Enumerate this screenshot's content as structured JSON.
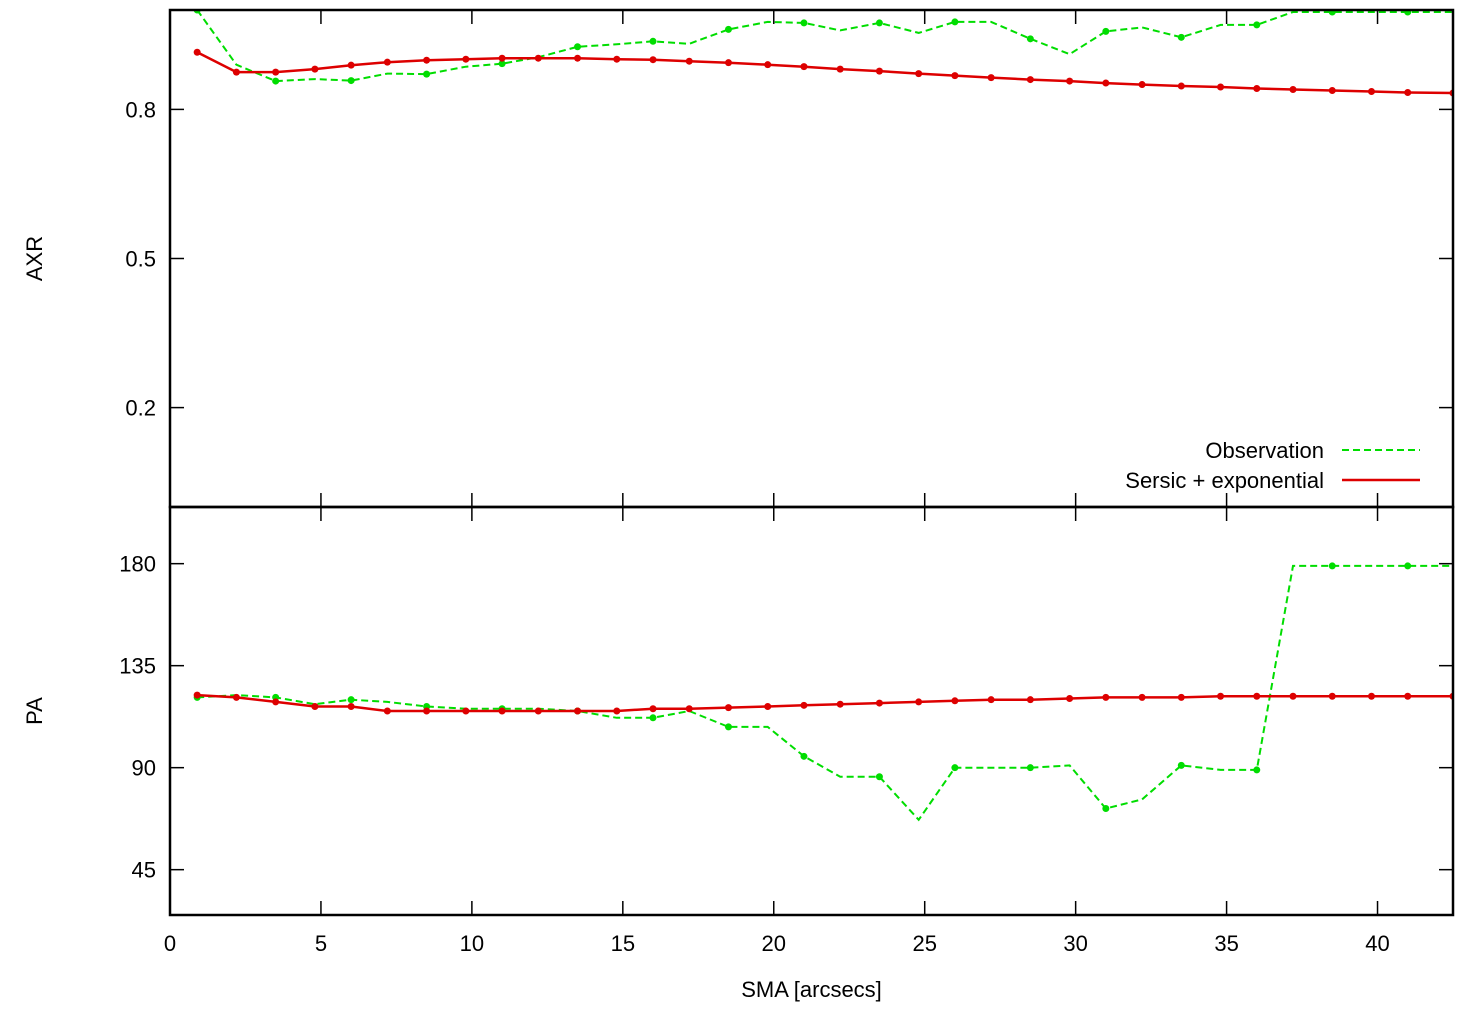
{
  "chart_data": [
    {
      "type": "line",
      "panel": "top",
      "title": "",
      "xlabel": "",
      "ylabel": "AXR",
      "xlim": [
        0,
        42.5
      ],
      "ylim": [
        0,
        1.0
      ],
      "yticks": [
        0.2,
        0.5,
        0.8
      ],
      "ytick_labels": [
        "0.2",
        "0.5",
        "0.8"
      ],
      "grid": false,
      "legend_position": "bottom-right",
      "series": [
        {
          "name": "Observation",
          "color": "#00dd00",
          "line_style": "dashed",
          "x": [
            0.9,
            2.2,
            3.5,
            4.8,
            6.0,
            7.2,
            8.5,
            9.8,
            11.0,
            12.2,
            13.5,
            14.8,
            16.0,
            17.2,
            18.5,
            19.8,
            21.0,
            22.2,
            23.5,
            24.8,
            26.0,
            27.2,
            28.5,
            29.8,
            31.0,
            32.2,
            33.5,
            34.8,
            36.0,
            37.2,
            38.5,
            39.8,
            41.0,
            42.5
          ],
          "y": [
            1.0,
            0.89,
            0.857,
            0.861,
            0.858,
            0.872,
            0.871,
            0.886,
            0.892,
            0.905,
            0.926,
            0.931,
            0.937,
            0.932,
            0.961,
            0.976,
            0.974,
            0.959,
            0.974,
            0.954,
            0.976,
            0.976,
            0.942,
            0.911,
            0.957,
            0.965,
            0.945,
            0.97,
            0.97,
            0.996,
            0.996,
            0.996,
            0.996,
            0.996
          ]
        },
        {
          "name": "Sersic + exponential",
          "color": "#dd0000",
          "line_style": "solid",
          "x": [
            0.9,
            2.2,
            3.5,
            4.8,
            6.0,
            7.2,
            8.5,
            9.8,
            11.0,
            12.2,
            13.5,
            14.8,
            16.0,
            17.2,
            18.5,
            19.8,
            21.0,
            22.2,
            23.5,
            24.8,
            26.0,
            27.2,
            28.5,
            29.8,
            31.0,
            32.2,
            33.5,
            34.8,
            36.0,
            37.2,
            38.5,
            39.8,
            41.0,
            42.5
          ],
          "y": [
            0.915,
            0.875,
            0.875,
            0.881,
            0.889,
            0.895,
            0.899,
            0.901,
            0.903,
            0.903,
            0.903,
            0.901,
            0.9,
            0.897,
            0.894,
            0.89,
            0.886,
            0.881,
            0.877,
            0.872,
            0.868,
            0.864,
            0.86,
            0.857,
            0.853,
            0.85,
            0.847,
            0.845,
            0.842,
            0.84,
            0.838,
            0.836,
            0.834,
            0.833
          ]
        }
      ]
    },
    {
      "type": "line",
      "panel": "bottom",
      "title": "",
      "xlabel": "SMA [arcsecs]",
      "ylabel": "PA",
      "xlim": [
        0,
        42.5
      ],
      "ylim": [
        25,
        205
      ],
      "xticks": [
        0,
        5,
        10,
        15,
        20,
        25,
        30,
        35,
        40
      ],
      "xtick_labels": [
        "0",
        "5",
        "10",
        "15",
        "20",
        "25",
        "30",
        "35",
        "40"
      ],
      "yticks": [
        45,
        90,
        135,
        180
      ],
      "ytick_labels": [
        "45",
        "90",
        "135",
        "180"
      ],
      "grid": false,
      "series": [
        {
          "name": "Observation",
          "color": "#00dd00",
          "line_style": "dashed",
          "x": [
            0.9,
            2.2,
            3.5,
            4.8,
            6.0,
            7.2,
            8.5,
            9.8,
            11.0,
            12.2,
            13.5,
            14.8,
            16.0,
            17.2,
            18.5,
            19.8,
            21.0,
            22.2,
            23.5,
            24.8,
            26.0,
            27.2,
            28.5,
            29.8,
            31.0,
            32.2,
            33.5,
            34.8,
            36.0,
            37.2,
            38.5,
            39.8,
            41.0,
            42.5
          ],
          "y": [
            121,
            122,
            121,
            118,
            120,
            119,
            117,
            116,
            116,
            116,
            115,
            112,
            112,
            115,
            108,
            108,
            95,
            86,
            86,
            67,
            90,
            90,
            90,
            91,
            72,
            76,
            91,
            89,
            89,
            179,
            179,
            179,
            179,
            179
          ]
        },
        {
          "name": "Sersic + exponential",
          "color": "#dd0000",
          "line_style": "solid",
          "x": [
            0.9,
            2.2,
            3.5,
            4.8,
            6.0,
            7.2,
            8.5,
            9.8,
            11.0,
            12.2,
            13.5,
            14.8,
            16.0,
            17.2,
            18.5,
            19.8,
            21.0,
            22.2,
            23.5,
            24.8,
            26.0,
            27.2,
            28.5,
            29.8,
            31.0,
            32.2,
            33.5,
            34.8,
            36.0,
            37.2,
            38.5,
            39.8,
            41.0,
            42.5
          ],
          "y": [
            122,
            121,
            119,
            117,
            117,
            115,
            115,
            115,
            115,
            115,
            115,
            115,
            116,
            116,
            116.5,
            117,
            117.5,
            118,
            118.5,
            119,
            119.5,
            120,
            120,
            120.5,
            121,
            121,
            121,
            121.5,
            121.5,
            121.5,
            121.5,
            121.5,
            121.5,
            121.5
          ]
        }
      ]
    }
  ]
}
